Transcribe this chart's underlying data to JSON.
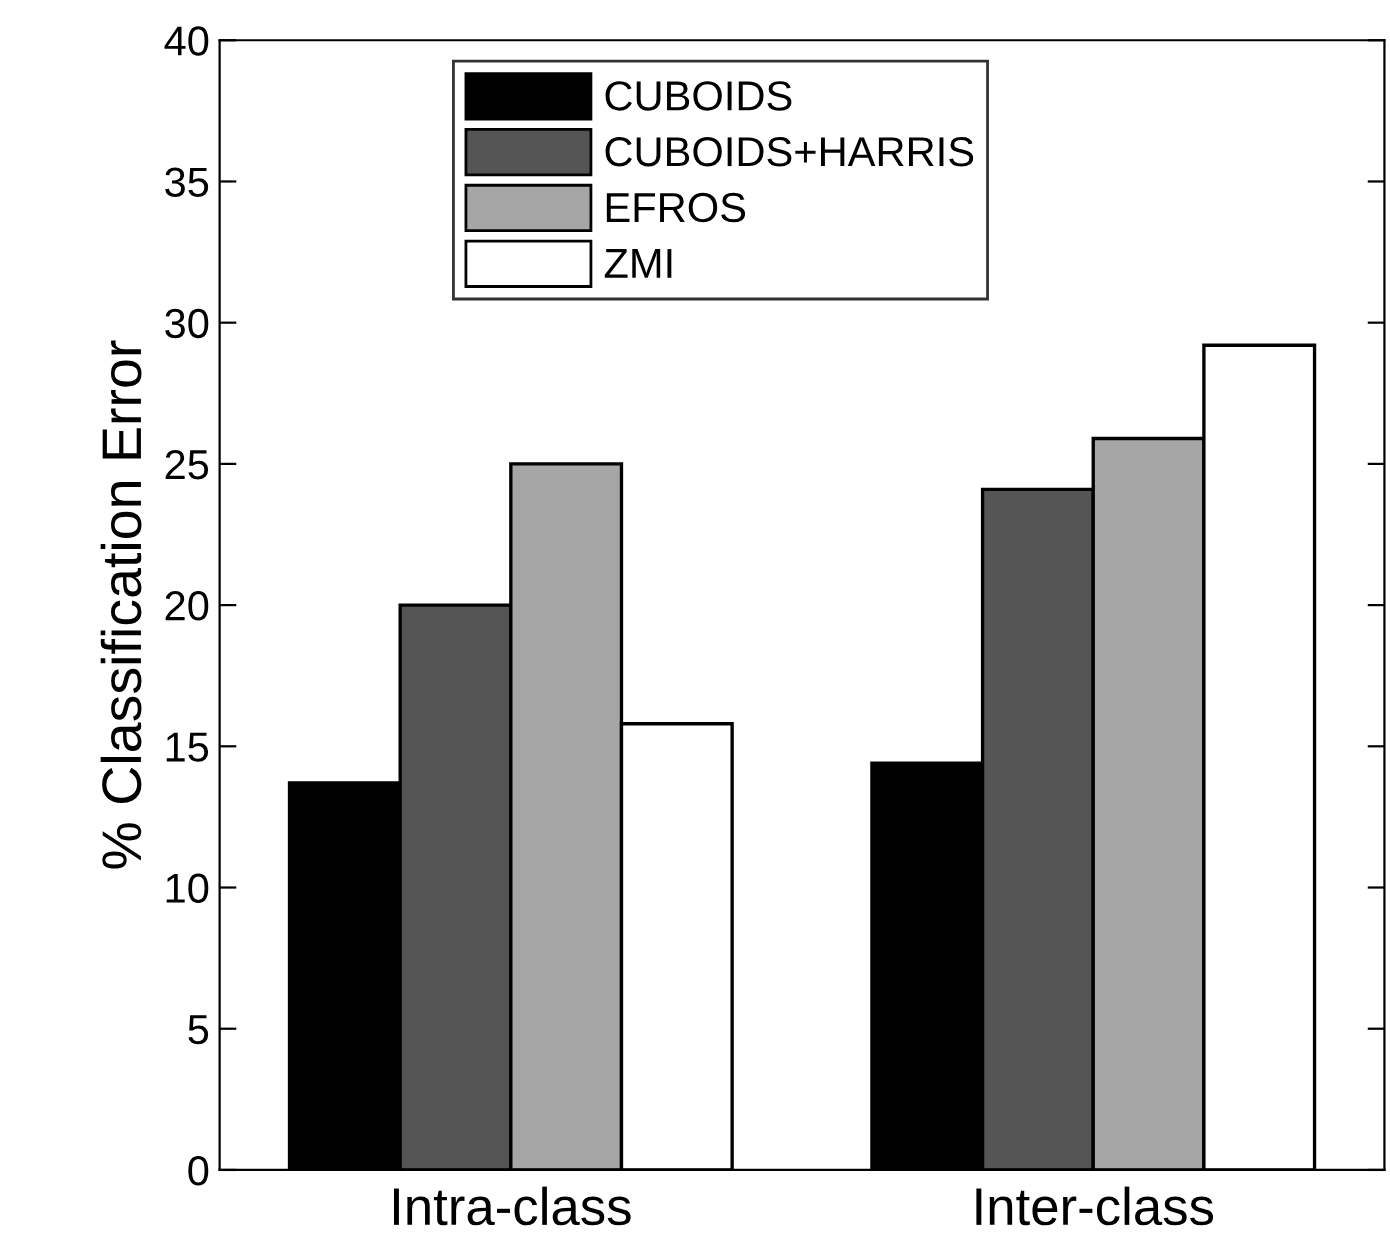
{
  "chart_data": {
    "type": "bar",
    "ylabel": "% Classification Error",
    "categories": [
      "Intra-class",
      "Inter-class"
    ],
    "series": [
      {
        "name": "CUBOIDS",
        "color": "#000000",
        "values": [
          13.7,
          14.4
        ]
      },
      {
        "name": "CUBOIDS+HARRIS",
        "color": "#555555",
        "values": [
          20,
          24.1
        ]
      },
      {
        "name": "EFROS",
        "color": "#a6a6a6",
        "values": [
          25,
          25.9
        ]
      },
      {
        "name": "ZMI",
        "color": "#ffffff",
        "values": [
          15.8,
          29.2
        ]
      }
    ],
    "ylim": [
      0,
      40
    ],
    "yticks": [
      0,
      5,
      10,
      15,
      20,
      25,
      30,
      35,
      40
    ],
    "grid": false,
    "legend": "top"
  }
}
